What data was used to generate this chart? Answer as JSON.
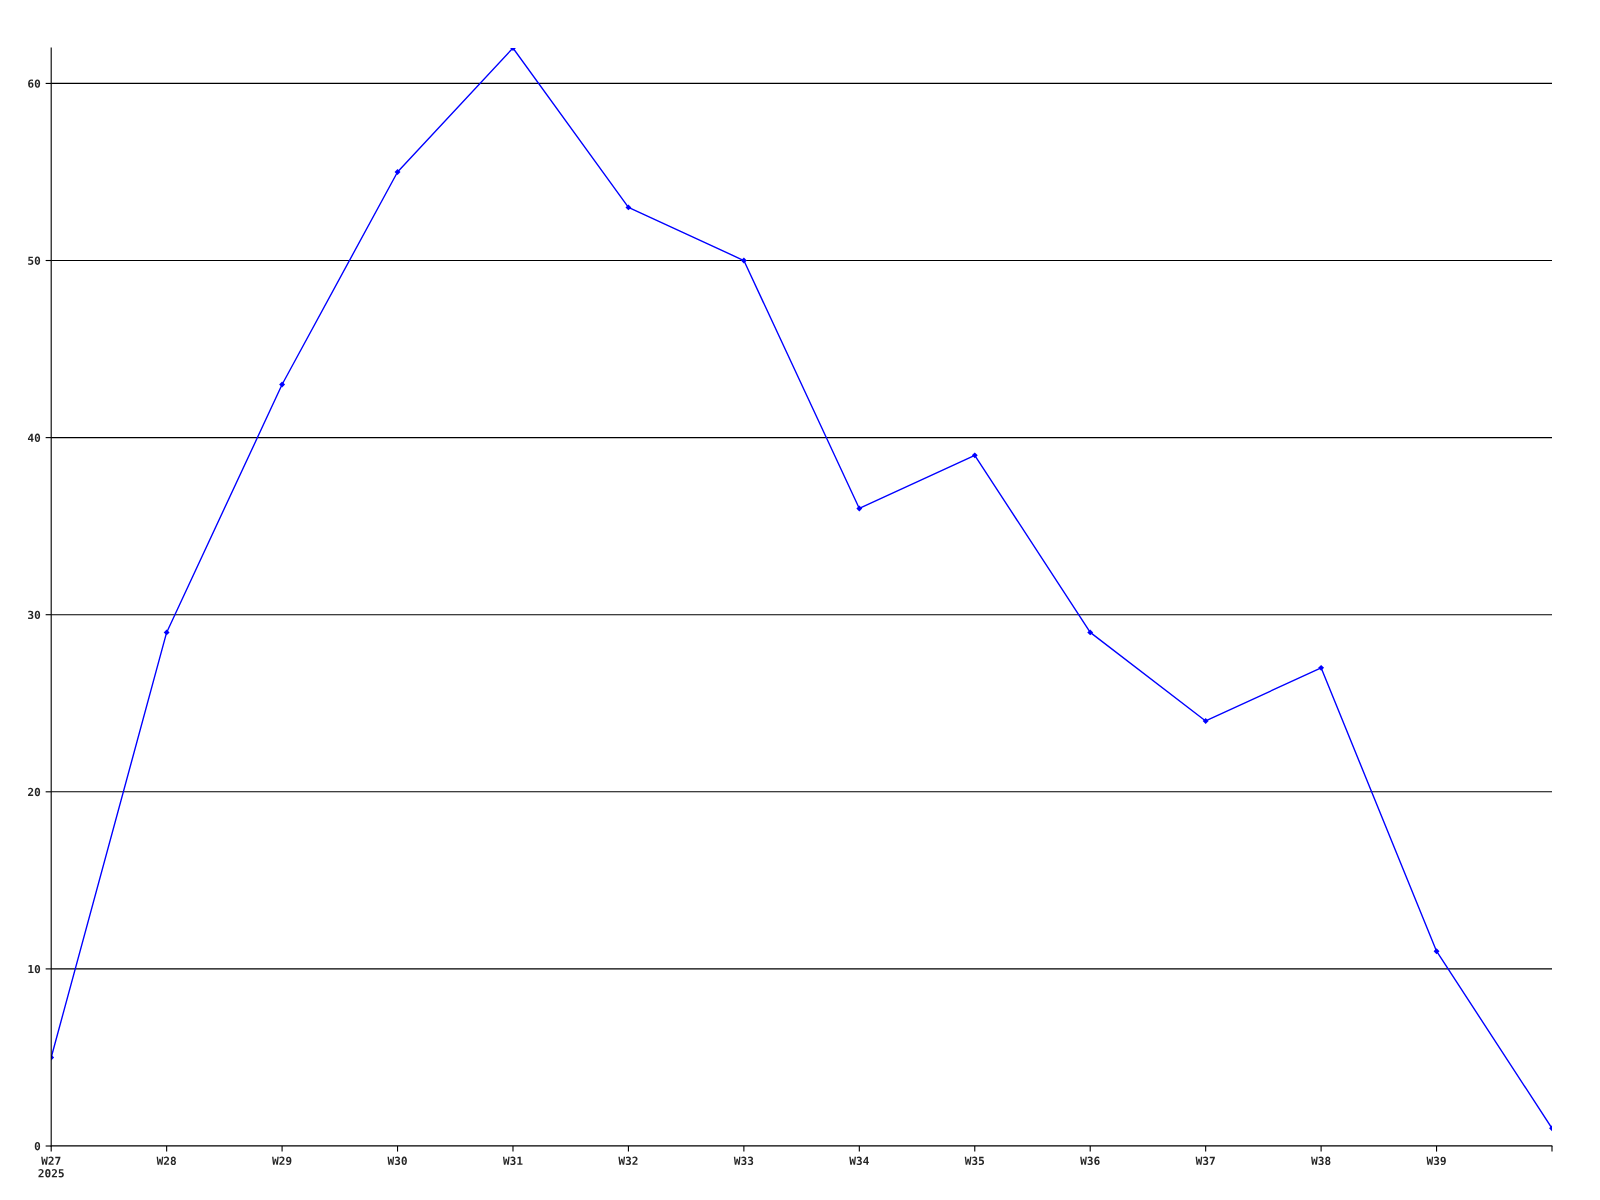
{
  "chart_data": {
    "type": "line",
    "categories": [
      "W27\n2025",
      "W28",
      "W29",
      "W30",
      "W31",
      "W32",
      "W33",
      "W34",
      "W35",
      "W36",
      "W37",
      "W38",
      "W39",
      null
    ],
    "series": [
      {
        "color": "#0000ff",
        "values": [
          5,
          29,
          43,
          55,
          62,
          53,
          50,
          36,
          39,
          29,
          24,
          27,
          11,
          1
        ]
      }
    ],
    "ylim": [
      0,
      62
    ],
    "yticks": [
      0,
      10,
      20,
      30,
      40,
      50,
      60
    ],
    "grid": "y",
    "marker": "diamond",
    "line_style": "solid"
  }
}
